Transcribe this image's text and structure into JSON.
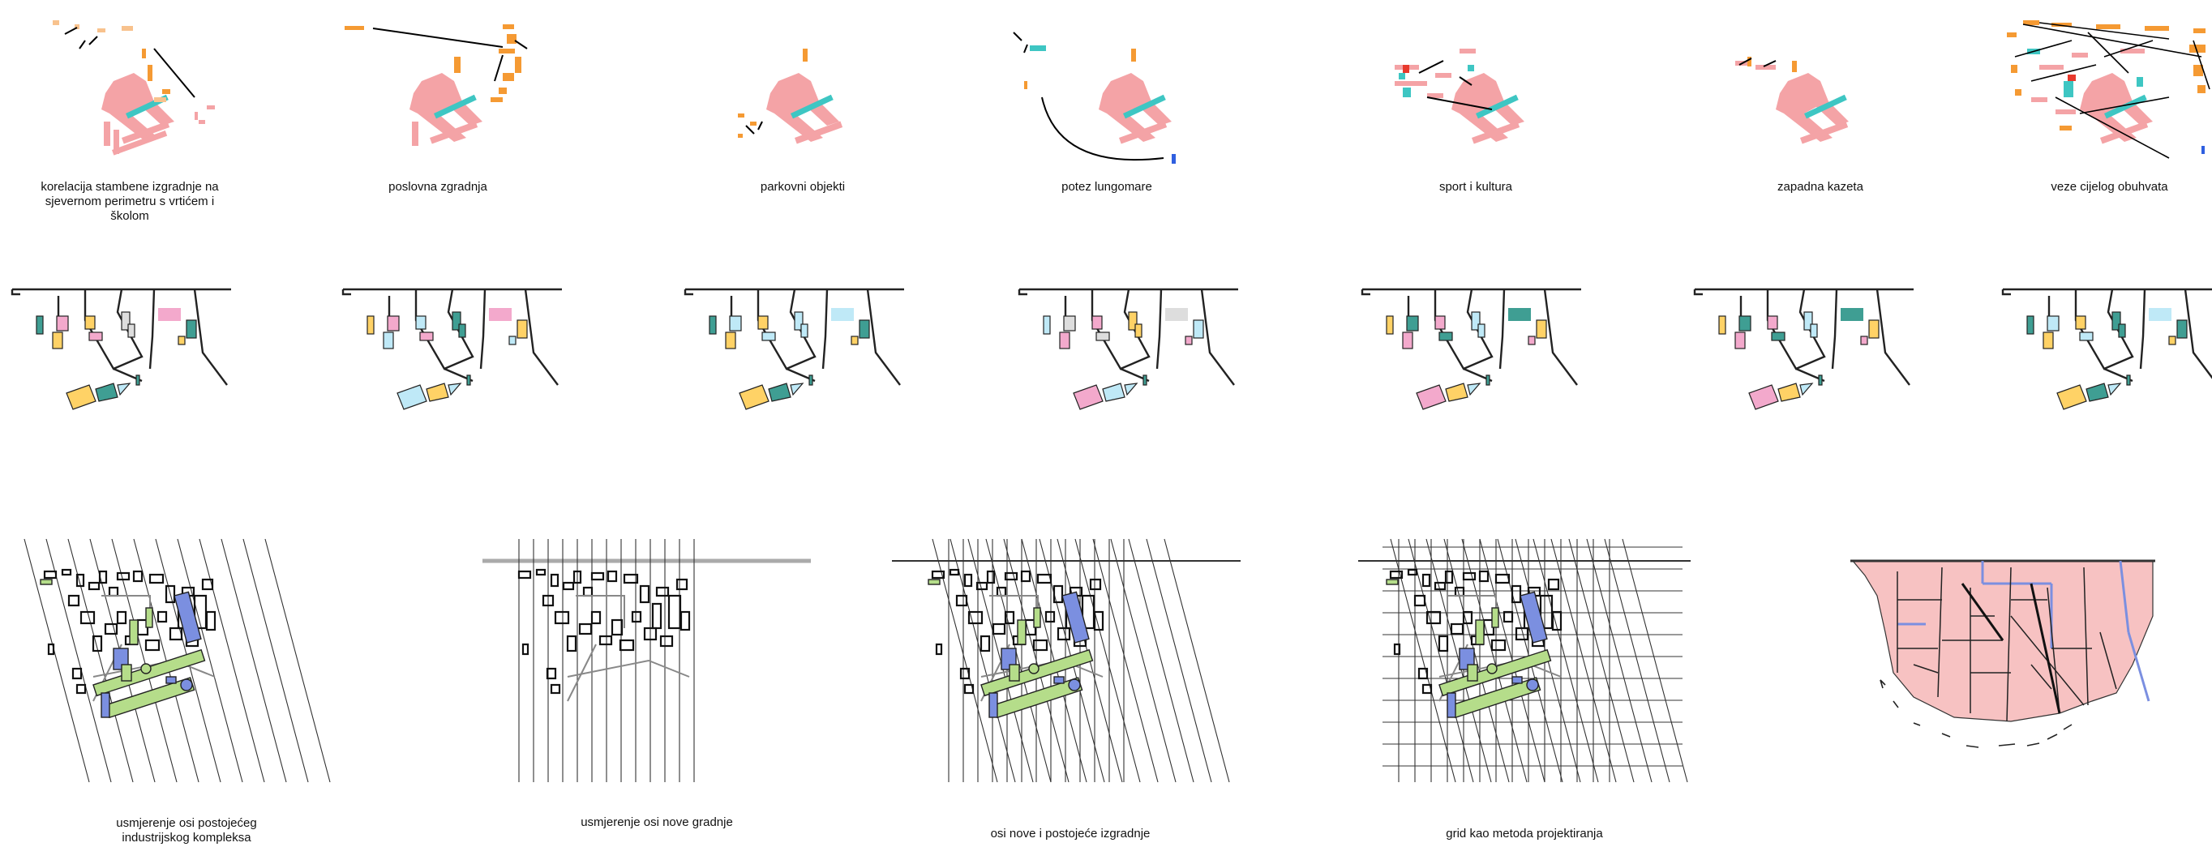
{
  "row1": {
    "captions": [
      "korelacija stambene izgradnje na sjevernom perimetru s vrtićem i školom",
      "poslovna zgradnja",
      "parkovni objekti",
      "potez lungomare",
      "sport i kultura",
      "zapadna kazeta",
      "veze cijelog obuhvata"
    ]
  },
  "row2": {
    "note": ""
  },
  "row3": {
    "captions": [
      "usmjerenje osi postojećeg industrijskog kompleksa",
      "usmjerenje osi nove gradnje",
      "osi nove i postojeće izgradnje",
      "grid kao metoda projektiranja"
    ]
  },
  "colors": {
    "salmon": "#f4a3a6",
    "orange": "#f59a33",
    "peach": "#f8c28d",
    "teal": "#3ec6c3",
    "red": "#e8392c",
    "blue": "#2f5fe0",
    "yellow": "#ffd266",
    "pink": "#f3a9cc",
    "lightblue": "#bfe9f7",
    "darkteal": "#3f9e93",
    "green": "#b5dd8a",
    "mapblue": "#7b8fe0",
    "mappink": "#f7c2c2"
  }
}
